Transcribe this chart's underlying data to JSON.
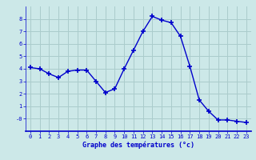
{
  "x": [
    0,
    1,
    2,
    3,
    4,
    5,
    6,
    7,
    8,
    9,
    10,
    11,
    12,
    13,
    14,
    15,
    16,
    17,
    18,
    19,
    20,
    21,
    22,
    23
  ],
  "y": [
    4.1,
    4.0,
    3.6,
    3.3,
    3.8,
    3.9,
    3.9,
    3.0,
    2.1,
    2.4,
    4.0,
    5.5,
    7.0,
    8.2,
    7.9,
    7.7,
    6.6,
    4.2,
    1.5,
    0.6,
    -0.1,
    -0.1,
    -0.2,
    -0.3
  ],
  "line_color": "#0000cc",
  "marker": "+",
  "markersize": 4,
  "linewidth": 1.0,
  "bg_color": "#cce8e8",
  "grid_color": "#aacccc",
  "xlabel": "Graphe des températures (°c)",
  "xlabel_color": "#0000cc",
  "tick_color": "#0000cc",
  "axis_color": "#0000cc",
  "xlim": [
    -0.5,
    23.5
  ],
  "ylim": [
    -1.0,
    9.0
  ],
  "yticks": [
    0,
    1,
    2,
    3,
    4,
    5,
    6,
    7,
    8
  ],
  "ytick_labels": [
    "-0",
    "1",
    "2",
    "3",
    "4",
    "5",
    "6",
    "7",
    "8"
  ],
  "xticks": [
    0,
    1,
    2,
    3,
    4,
    5,
    6,
    7,
    8,
    9,
    10,
    11,
    12,
    13,
    14,
    15,
    16,
    17,
    18,
    19,
    20,
    21,
    22,
    23
  ]
}
